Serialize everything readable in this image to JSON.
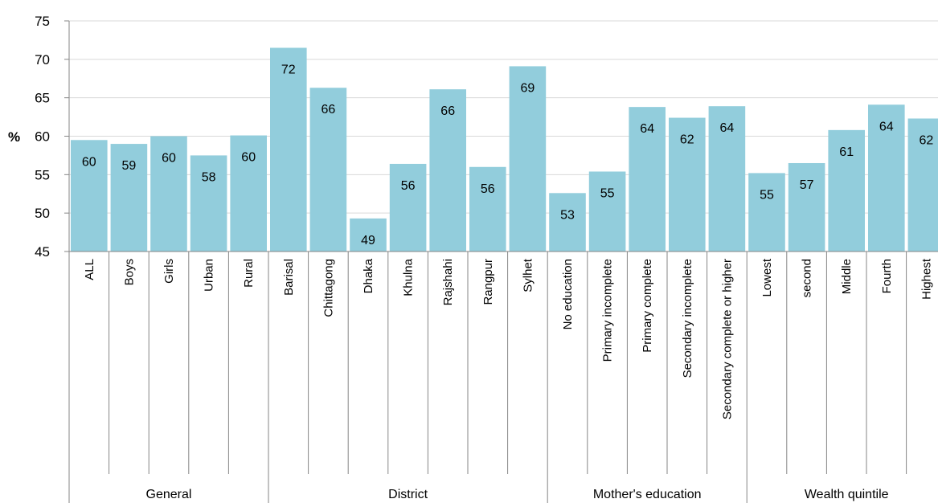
{
  "chart_data": {
    "type": "bar",
    "title": "",
    "ylabel": "%",
    "xlabel": "",
    "ylim": [
      45,
      75
    ],
    "yticks": [
      45,
      50,
      55,
      60,
      65,
      70,
      75
    ],
    "grid": true,
    "bar_color": "#92cddc",
    "grid_color": "#d9d9d9",
    "axis_color": "#868686",
    "categories": [
      "ALL",
      "Boys",
      "Girls",
      "Urban",
      "Rural",
      "Barisal",
      "Chittagong",
      "Dhaka",
      "Khulna",
      "Rajshahi",
      "Rangpur",
      "Sylhet",
      "No education",
      "Primary incomplete",
      "Primary complete",
      "Secondary incomplete",
      "Secondary complete or higher",
      "Lowest",
      "second",
      "Middle",
      "Fourth",
      "Highest"
    ],
    "values": [
      59.5,
      59.0,
      60.0,
      57.5,
      60.1,
      71.5,
      66.3,
      49.3,
      56.4,
      66.1,
      56.0,
      69.1,
      52.6,
      55.4,
      63.8,
      62.4,
      63.9,
      55.2,
      56.5,
      60.8,
      64.1,
      62.3
    ],
    "data_labels": [
      "60",
      "59",
      "60",
      "58",
      "60",
      "72",
      "66",
      "49",
      "56",
      "66",
      "56",
      "69",
      "53",
      "55",
      "64",
      "62",
      "64",
      "55",
      "57",
      "61",
      "64",
      "62"
    ],
    "groups": [
      {
        "name": "General",
        "start": 0,
        "end": 4
      },
      {
        "name": "District",
        "start": 5,
        "end": 11
      },
      {
        "name": "Mother's education",
        "start": 12,
        "end": 16
      },
      {
        "name": "Wealth quintile",
        "start": 17,
        "end": 21
      }
    ]
  }
}
